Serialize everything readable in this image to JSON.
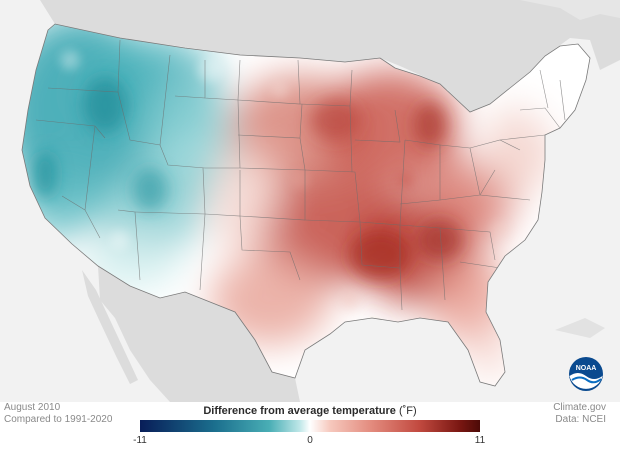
{
  "map": {
    "date_line": "August 2010",
    "baseline_line": "Compared to 1991-2020",
    "credit_site": "Climate.gov",
    "credit_data": "Data: NCEI",
    "logo_text": "NOAA"
  },
  "legend": {
    "title": "Difference from average temperature",
    "unit": "(˚F)",
    "min_label": "-11",
    "mid_label": "0",
    "max_label": "11",
    "scale": {
      "min": -11,
      "max": 11
    },
    "colors": [
      "#081d58",
      "#1b6f8e",
      "#49aeb5",
      "#bfe7e8",
      "#ffffff",
      "#f6c8bd",
      "#e38b7e",
      "#c24a40",
      "#7a1712",
      "#4d0a07"
    ]
  },
  "colors": {
    "background_land": "#dcdcdc",
    "water": "#f2f2f2",
    "cool_anomaly": "#2aa0ab",
    "warm_anomaly": "#c94f45"
  }
}
